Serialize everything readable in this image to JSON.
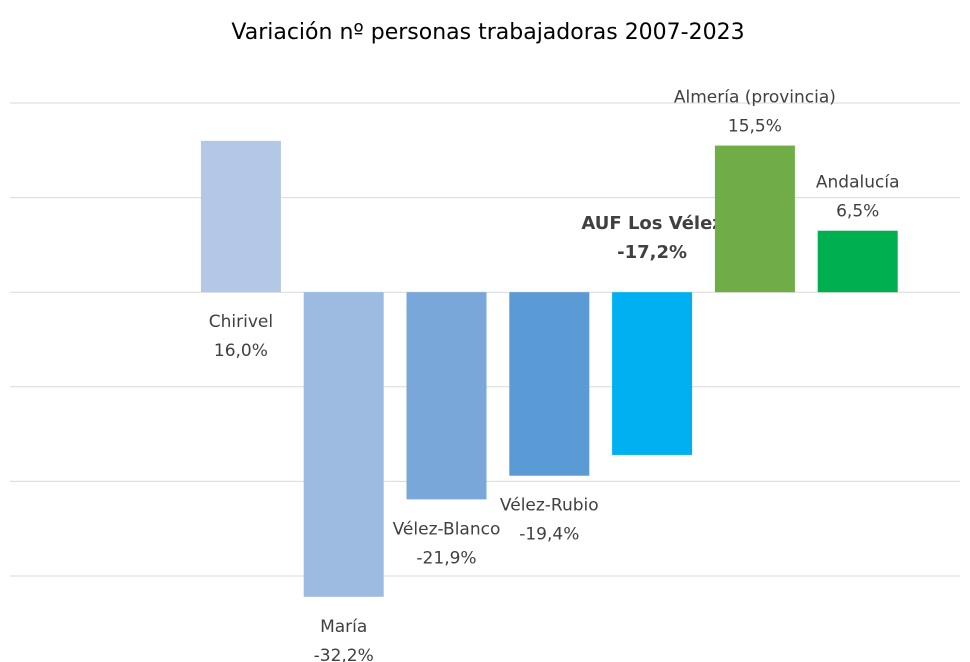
{
  "chart_data": {
    "type": "bar",
    "title": "Variación nº personas trabajadoras 2007-2023",
    "categories": [
      "Chirivel",
      "María",
      "Vélez-Blanco",
      "Vélez-Rubio",
      "AUF Los Vélez",
      "Almería (provincia)",
      "Andalucía"
    ],
    "values": [
      16.0,
      -32.2,
      -21.9,
      -19.4,
      -17.2,
      15.5,
      6.5
    ],
    "value_labels": [
      "16,0%",
      "-32,2%",
      "-21,9%",
      "-19,4%",
      "-17,2%",
      "15,5%",
      "6,5%"
    ],
    "colors": [
      "#b4c7e7",
      "#9dbbe1",
      "#7aa7d9",
      "#5b9bd5",
      "#00b0f0",
      "#70ad47",
      "#00b050"
    ],
    "ylim": [
      -35,
      20
    ],
    "yticks": [
      -30,
      -20,
      -10,
      0,
      10,
      20
    ],
    "grid": true
  }
}
